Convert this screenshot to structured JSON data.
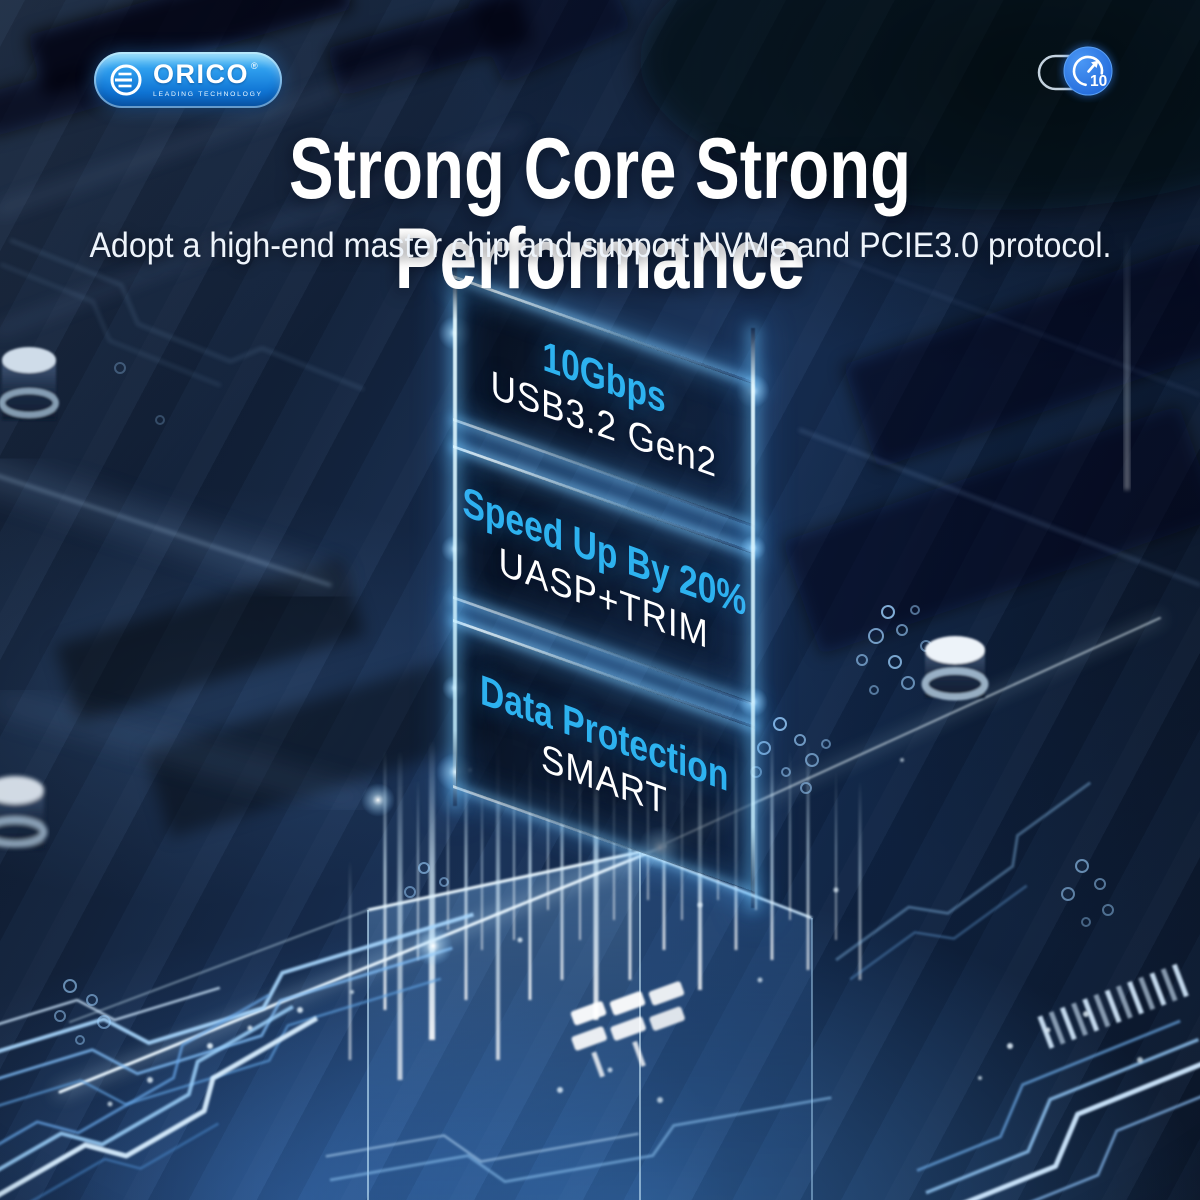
{
  "brand": {
    "name": "ORICO",
    "registered": "®",
    "tagline": "LEADING TECHNOLOGY"
  },
  "speed_badge": {
    "value": "10"
  },
  "header": {
    "title": "Strong Core Strong Performance",
    "subtitle": "Adopt a high-end master chip and support NVMe and PCIE3.0 protocol."
  },
  "features": [
    {
      "headline": "10Gbps",
      "subline": "USB3.2 Gen2"
    },
    {
      "headline": "Speed Up By 20%",
      "subline": "UASP+TRIM"
    },
    {
      "headline": "Data Protection",
      "subline": "SMART"
    }
  ],
  "colors": {
    "accent_cyan": "#2db2ef",
    "badge_blue": "#2a79e6",
    "pill_blue": "#1f8ee4",
    "background_navy": "#122744",
    "glow_edge": "#bfe9ff"
  }
}
